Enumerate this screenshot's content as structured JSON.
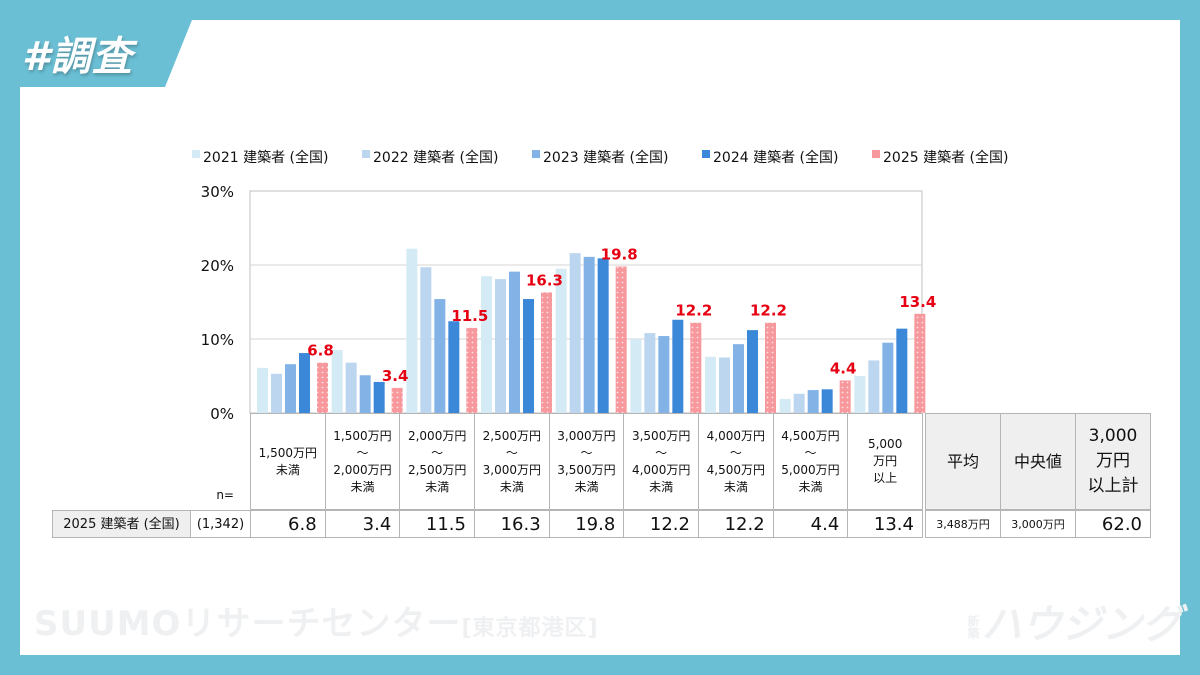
{
  "tag": "#調査",
  "watermark": {
    "left_main": "SUUMOリサーチセンター",
    "left_sub": "[東京都港区]",
    "logo": "新築ハウジング"
  },
  "colors": {
    "2021": "#d4ebf5",
    "2022": "#bcd6f0",
    "2023": "#83b3e6",
    "2024": "#3c88d8",
    "2025": "#f7989d",
    "label": "#e60012",
    "background": "#6bbfd4"
  },
  "chart_data": {
    "type": "bar",
    "ylim": [
      0,
      30
    ],
    "yticks": [
      "0%",
      "10%",
      "20%",
      "30%"
    ],
    "grid": true,
    "legend_position": "top",
    "categories": [
      "1,500万円\n未満",
      "1,500万円\n～\n2,000万円\n未満",
      "2,000万円\n～\n2,500万円\n未満",
      "2,500万円\n～\n3,000万円\n未満",
      "3,000万円\n～\n3,500万円\n未満",
      "3,500万円\n～\n4,000万円\n未満",
      "4,000万円\n～\n4,500万円\n未満",
      "4,500万円\n～\n5,000万円\n未満",
      "5,000\n万円\n以上"
    ],
    "series": [
      {
        "name": "2021 建築者 (全国)",
        "values": [
          6.1,
          8.5,
          22.2,
          18.5,
          19.5,
          10.0,
          7.6,
          1.9,
          5.0
        ]
      },
      {
        "name": "2022 建築者 (全国)",
        "values": [
          5.3,
          6.8,
          19.7,
          18.1,
          21.6,
          10.8,
          7.5,
          2.6,
          7.1
        ]
      },
      {
        "name": "2023 建築者 (全国)",
        "values": [
          6.6,
          5.1,
          15.4,
          19.1,
          21.1,
          10.4,
          9.3,
          3.1,
          9.5
        ]
      },
      {
        "name": "2024 建築者 (全国)",
        "values": [
          8.1,
          4.2,
          12.4,
          15.4,
          20.9,
          12.6,
          11.2,
          3.2,
          11.4
        ]
      },
      {
        "name": "2025 建築者 (全国)",
        "values": [
          6.8,
          3.4,
          11.5,
          16.3,
          19.8,
          12.2,
          12.2,
          4.4,
          13.4
        ]
      }
    ],
    "data_labels": [
      "6.8",
      "3.4",
      "11.5",
      "16.3",
      "19.8",
      "12.2",
      "12.2",
      "4.4",
      "13.4"
    ]
  },
  "table": {
    "n_label": "n=",
    "row_label": "2025 建築者 (全国)",
    "n": "(1,342)",
    "values": [
      "6.8",
      "3.4",
      "11.5",
      "16.3",
      "19.8",
      "12.2",
      "12.2",
      "4.4",
      "13.4"
    ],
    "extra_headers": [
      "平均",
      "中央値",
      "3,000\n万円\n以上計"
    ],
    "extra_values": [
      "3,488万円",
      "3,000万円",
      "62.0"
    ]
  }
}
